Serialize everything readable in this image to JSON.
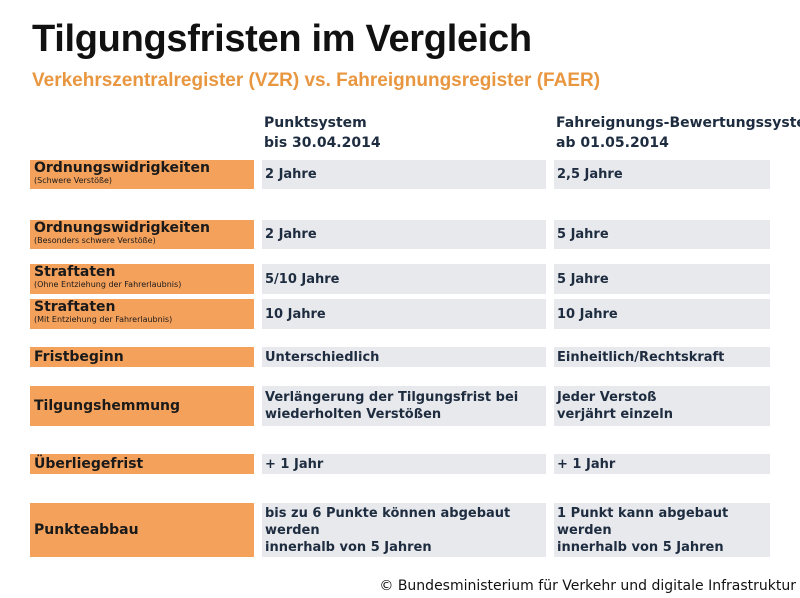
{
  "title": "Tilgungsfristen im Vergleich",
  "subtitle": "Verkehrszentralregister (VZR) vs. Fahreignungsregister (FAER)",
  "columns": [
    {
      "line1": "Punktsystem",
      "line2": "bis 30.04.2014"
    },
    {
      "line1": "Fahreignungs-Bewertungssystem",
      "line2": "ab 01.05.2014"
    }
  ],
  "rows": [
    {
      "label": "Ordnungswidrigkeiten",
      "sub": "(Schwere Verstöße)",
      "col1": [
        "2 Jahre"
      ],
      "col2": [
        "2,5 Jahre"
      ]
    },
    {
      "label": "Ordnungswidrigkeiten",
      "sub": "(Besonders schwere Verstöße)",
      "col1": [
        "2 Jahre"
      ],
      "col2": [
        "5 Jahre"
      ]
    },
    {
      "label": "Straftaten",
      "sub": "(Ohne Entziehung der Fahrerlaubnis)",
      "col1": [
        "5/10 Jahre"
      ],
      "col2": [
        "5 Jahre"
      ]
    },
    {
      "label": "Straftaten",
      "sub": "(Mit Entziehung der Fahrerlaubnis)",
      "col1": [
        "10 Jahre"
      ],
      "col2": [
        "10 Jahre"
      ]
    },
    {
      "label": "Fristbeginn",
      "sub": "",
      "col1": [
        "Unterschiedlich"
      ],
      "col2": [
        "Einheitlich/Rechtskraft"
      ]
    },
    {
      "label": "Tilgungshemmung",
      "sub": "",
      "col1": [
        "Verlängerung der Tilgungsfrist bei",
        "wiederholten Verstößen"
      ],
      "col2": [
        "Jeder Verstoß",
        "verjährt einzeln"
      ]
    },
    {
      "label": "Überliegefrist",
      "sub": "",
      "col1": [
        "+ 1 Jahr"
      ],
      "col2": [
        "+ 1 Jahr"
      ]
    },
    {
      "label": "Punkteabbau",
      "sub": "",
      "col1": [
        "bis zu 6 Punkte können abgebaut werden",
        "innerhalb von 5 Jahren"
      ],
      "col2": [
        "1 Punkt kann abgebaut werden",
        "innerhalb von 5 Jahren"
      ]
    }
  ],
  "footer": "© Bundesministerium für Verkehr und digitale Infrastruktur",
  "colors": {
    "label_bg": "#f4a15c",
    "cell_bg": "#e8e9ec",
    "accent": "#e8963f",
    "text": "#1e2c40"
  }
}
